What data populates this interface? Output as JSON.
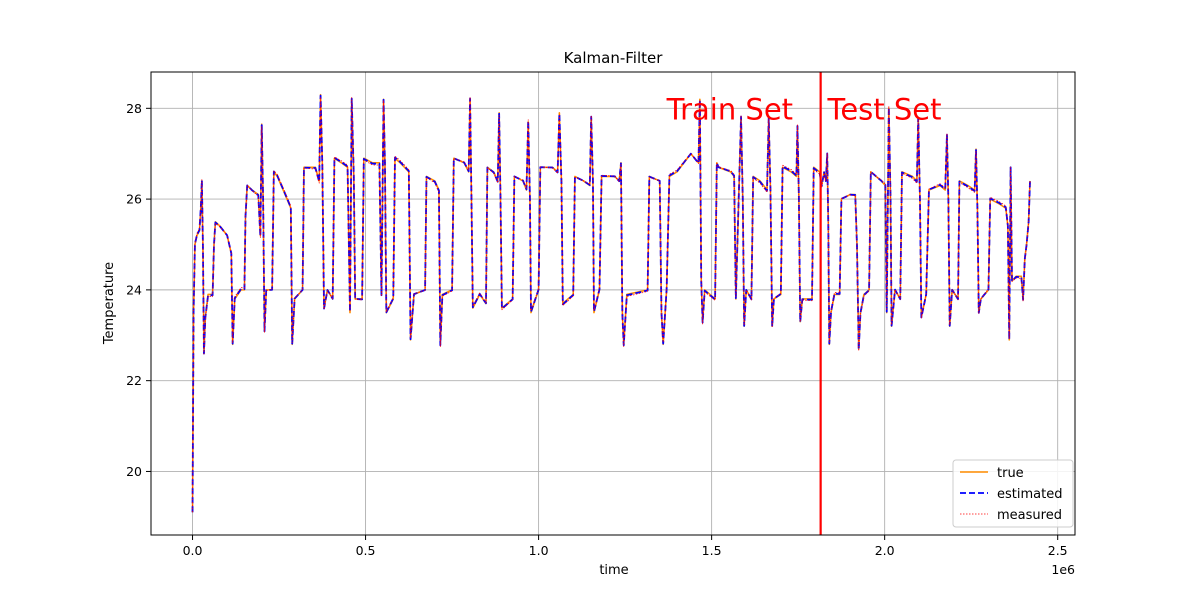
{
  "chart_data": {
    "type": "line",
    "title": "Kalman-Filter",
    "xlabel": "time",
    "ylabel": "Temperature",
    "x_offset_text": "1e6",
    "xlim": [
      -0.12,
      2.55
    ],
    "ylim": [
      18.6,
      28.8
    ],
    "x_ticks": [
      0.0,
      0.5,
      1.0,
      1.5,
      2.0,
      2.5
    ],
    "x_tick_labels": [
      "0.0",
      "0.5",
      "1.0",
      "1.5",
      "2.0",
      "2.5"
    ],
    "y_ticks": [
      20,
      22,
      24,
      26,
      28
    ],
    "y_tick_labels": [
      "20",
      "22",
      "24",
      "26",
      "28"
    ],
    "grid": true,
    "legend_position": "lower-right",
    "split_line": {
      "x": 1.815,
      "color": "#ff0000"
    },
    "annotations": [
      {
        "text": "Train Set",
        "x": 1.37,
        "y": 27.75
      },
      {
        "text": "Test Set",
        "x": 1.835,
        "y": 27.75
      }
    ],
    "series": [
      {
        "name": "true",
        "color": "#ff8c00",
        "style": "solid"
      },
      {
        "name": "estimated",
        "color": "#0000ff",
        "style": "dashed"
      },
      {
        "name": "measured",
        "color": "#ff0000",
        "style": "dotted"
      }
    ],
    "profile": [
      [
        0.0,
        19.1
      ],
      [
        0.003,
        23.5
      ],
      [
        0.007,
        25.0
      ],
      [
        0.013,
        25.2
      ],
      [
        0.02,
        25.3
      ],
      [
        0.024,
        25.8
      ],
      [
        0.027,
        26.4
      ],
      [
        0.03,
        25.0
      ],
      [
        0.033,
        22.6
      ],
      [
        0.037,
        23.4
      ],
      [
        0.045,
        23.9
      ],
      [
        0.058,
        23.9
      ],
      [
        0.062,
        25.0
      ],
      [
        0.066,
        25.5
      ],
      [
        0.08,
        25.4
      ],
      [
        0.1,
        25.2
      ],
      [
        0.112,
        24.8
      ],
      [
        0.116,
        22.8
      ],
      [
        0.122,
        23.8
      ],
      [
        0.14,
        24.0
      ],
      [
        0.15,
        24.0
      ],
      [
        0.153,
        25.6
      ],
      [
        0.158,
        26.3
      ],
      [
        0.172,
        26.2
      ],
      [
        0.19,
        26.1
      ],
      [
        0.196,
        25.2
      ],
      [
        0.2,
        27.65
      ],
      [
        0.204,
        26.0
      ],
      [
        0.208,
        23.1
      ],
      [
        0.213,
        24.0
      ],
      [
        0.23,
        24.0
      ],
      [
        0.235,
        26.6
      ],
      [
        0.245,
        26.5
      ],
      [
        0.262,
        26.2
      ],
      [
        0.284,
        25.8
      ],
      [
        0.288,
        22.8
      ],
      [
        0.295,
        23.8
      ],
      [
        0.318,
        24.0
      ],
      [
        0.322,
        26.7
      ],
      [
        0.355,
        26.7
      ],
      [
        0.366,
        26.4
      ],
      [
        0.37,
        28.3
      ],
      [
        0.375,
        26.8
      ],
      [
        0.38,
        23.6
      ],
      [
        0.39,
        24.0
      ],
      [
        0.405,
        23.8
      ],
      [
        0.41,
        26.9
      ],
      [
        0.43,
        26.8
      ],
      [
        0.448,
        26.7
      ],
      [
        0.455,
        23.5
      ],
      [
        0.46,
        28.2
      ],
      [
        0.466,
        26.5
      ],
      [
        0.47,
        23.8
      ],
      [
        0.49,
        23.8
      ],
      [
        0.495,
        26.9
      ],
      [
        0.52,
        26.8
      ],
      [
        0.54,
        26.8
      ],
      [
        0.546,
        23.9
      ],
      [
        0.552,
        28.2
      ],
      [
        0.556,
        26.8
      ],
      [
        0.56,
        23.5
      ],
      [
        0.58,
        23.8
      ],
      [
        0.585,
        26.9
      ],
      [
        0.6,
        26.8
      ],
      [
        0.625,
        26.6
      ],
      [
        0.63,
        22.9
      ],
      [
        0.64,
        23.9
      ],
      [
        0.672,
        24.0
      ],
      [
        0.676,
        26.5
      ],
      [
        0.7,
        26.4
      ],
      [
        0.712,
        26.2
      ],
      [
        0.716,
        22.8
      ],
      [
        0.722,
        23.9
      ],
      [
        0.75,
        24.0
      ],
      [
        0.755,
        26.9
      ],
      [
        0.785,
        26.8
      ],
      [
        0.798,
        26.6
      ],
      [
        0.802,
        28.2
      ],
      [
        0.806,
        26.0
      ],
      [
        0.81,
        23.6
      ],
      [
        0.83,
        23.9
      ],
      [
        0.848,
        23.7
      ],
      [
        0.852,
        26.7
      ],
      [
        0.87,
        26.6
      ],
      [
        0.882,
        26.4
      ],
      [
        0.886,
        27.9
      ],
      [
        0.89,
        26.0
      ],
      [
        0.894,
        23.6
      ],
      [
        0.925,
        23.8
      ],
      [
        0.93,
        26.5
      ],
      [
        0.955,
        26.4
      ],
      [
        0.965,
        26.2
      ],
      [
        0.97,
        27.7
      ],
      [
        0.975,
        26.0
      ],
      [
        0.978,
        23.5
      ],
      [
        1.0,
        24.0
      ],
      [
        1.005,
        26.7
      ],
      [
        1.04,
        26.7
      ],
      [
        1.055,
        26.6
      ],
      [
        1.06,
        27.9
      ],
      [
        1.066,
        26.4
      ],
      [
        1.07,
        23.7
      ],
      [
        1.1,
        23.9
      ],
      [
        1.105,
        26.5
      ],
      [
        1.13,
        26.4
      ],
      [
        1.148,
        26.3
      ],
      [
        1.152,
        27.8
      ],
      [
        1.157,
        26.4
      ],
      [
        1.16,
        23.5
      ],
      [
        1.176,
        24.0
      ],
      [
        1.182,
        26.5
      ],
      [
        1.22,
        26.5
      ],
      [
        1.233,
        26.4
      ],
      [
        1.238,
        26.8
      ],
      [
        1.242,
        23.5
      ],
      [
        1.246,
        22.8
      ],
      [
        1.255,
        23.9
      ],
      [
        1.315,
        24.0
      ],
      [
        1.32,
        26.5
      ],
      [
        1.35,
        26.4
      ],
      [
        1.355,
        23.5
      ],
      [
        1.36,
        22.8
      ],
      [
        1.37,
        24.0
      ],
      [
        1.378,
        26.5
      ],
      [
        1.4,
        26.6
      ],
      [
        1.42,
        26.8
      ],
      [
        1.44,
        27.0
      ],
      [
        1.462,
        26.8
      ],
      [
        1.466,
        28.2
      ],
      [
        1.47,
        24.2
      ],
      [
        1.474,
        23.3
      ],
      [
        1.48,
        24.0
      ],
      [
        1.51,
        23.8
      ],
      [
        1.515,
        26.8
      ],
      [
        1.52,
        26.7
      ],
      [
        1.555,
        26.6
      ],
      [
        1.565,
        26.5
      ],
      [
        1.57,
        23.8
      ],
      [
        1.585,
        27.8
      ],
      [
        1.59,
        26.0
      ],
      [
        1.594,
        23.2
      ],
      [
        1.6,
        24.0
      ],
      [
        1.615,
        23.8
      ],
      [
        1.62,
        26.5
      ],
      [
        1.64,
        26.4
      ],
      [
        1.66,
        26.2
      ],
      [
        1.665,
        27.8
      ],
      [
        1.67,
        26.2
      ],
      [
        1.675,
        23.2
      ],
      [
        1.68,
        23.8
      ],
      [
        1.7,
        23.9
      ],
      [
        1.705,
        26.7
      ],
      [
        1.73,
        26.6
      ],
      [
        1.745,
        26.5
      ],
      [
        1.748,
        27.6
      ],
      [
        1.752,
        26.1
      ],
      [
        1.756,
        23.3
      ],
      [
        1.762,
        23.8
      ],
      [
        1.79,
        23.8
      ],
      [
        1.795,
        26.7
      ],
      [
        1.812,
        26.6
      ],
      [
        1.818,
        26.3
      ],
      [
        1.825,
        26.6
      ],
      [
        1.83,
        26.4
      ],
      [
        1.834,
        27.0
      ],
      [
        1.837,
        25.5
      ],
      [
        1.84,
        22.8
      ],
      [
        1.845,
        23.5
      ],
      [
        1.855,
        23.9
      ],
      [
        1.87,
        23.9
      ],
      [
        1.875,
        26.0
      ],
      [
        1.9,
        26.1
      ],
      [
        1.915,
        26.1
      ],
      [
        1.92,
        25.0
      ],
      [
        1.925,
        22.7
      ],
      [
        1.93,
        23.5
      ],
      [
        1.94,
        23.9
      ],
      [
        1.955,
        24.0
      ],
      [
        1.96,
        26.6
      ],
      [
        1.99,
        26.4
      ],
      [
        2.002,
        26.3
      ],
      [
        2.006,
        23.5
      ],
      [
        2.012,
        28.0
      ],
      [
        2.017,
        26.0
      ],
      [
        2.02,
        23.2
      ],
      [
        2.03,
        24.0
      ],
      [
        2.045,
        23.8
      ],
      [
        2.05,
        26.6
      ],
      [
        2.08,
        26.5
      ],
      [
        2.093,
        26.4
      ],
      [
        2.097,
        27.8
      ],
      [
        2.102,
        26.0
      ],
      [
        2.106,
        23.4
      ],
      [
        2.12,
        23.9
      ],
      [
        2.128,
        26.2
      ],
      [
        2.16,
        26.3
      ],
      [
        2.175,
        26.2
      ],
      [
        2.18,
        27.4
      ],
      [
        2.184,
        26.0
      ],
      [
        2.188,
        23.2
      ],
      [
        2.195,
        24.0
      ],
      [
        2.212,
        23.8
      ],
      [
        2.216,
        26.4
      ],
      [
        2.24,
        26.3
      ],
      [
        2.26,
        26.2
      ],
      [
        2.264,
        27.1
      ],
      [
        2.268,
        25.8
      ],
      [
        2.272,
        23.5
      ],
      [
        2.278,
        23.8
      ],
      [
        2.3,
        24.0
      ],
      [
        2.305,
        26.0
      ],
      [
        2.33,
        25.9
      ],
      [
        2.35,
        25.8
      ],
      [
        2.356,
        25.4
      ],
      [
        2.36,
        22.9
      ],
      [
        2.364,
        26.7
      ],
      [
        2.368,
        24.2
      ],
      [
        2.38,
        24.3
      ],
      [
        2.395,
        24.3
      ],
      [
        2.4,
        23.8
      ],
      [
        2.405,
        24.7
      ],
      [
        2.41,
        25.0
      ],
      [
        2.416,
        25.5
      ],
      [
        2.42,
        26.4
      ]
    ],
    "legend": {
      "entries": [
        "true",
        "estimated",
        "measured"
      ]
    }
  }
}
